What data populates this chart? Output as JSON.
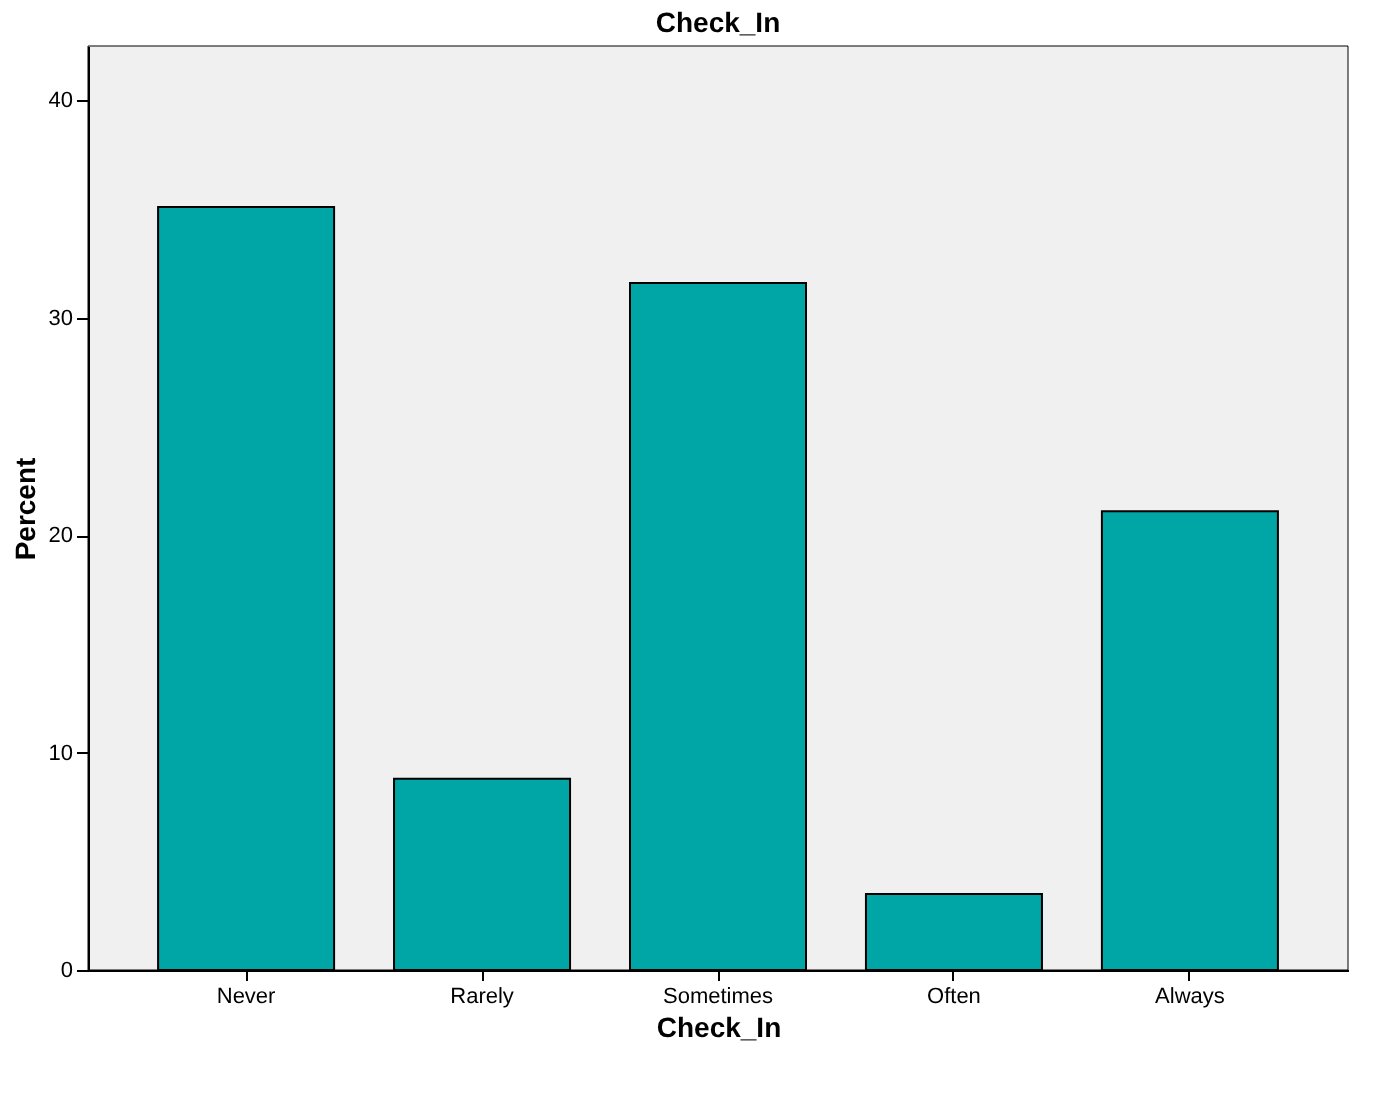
{
  "chart_data": {
    "type": "bar",
    "title": "Check_In",
    "xlabel": "Check_In",
    "ylabel": "Percent",
    "categories": [
      "Never",
      "Rarely",
      "Sometimes",
      "Often",
      "Always"
    ],
    "values": [
      35.1,
      8.8,
      31.6,
      3.5,
      21.1
    ],
    "color": "#00a5a5",
    "ylim": [
      0,
      42.5
    ],
    "yticks": [
      0,
      10,
      20,
      30,
      40
    ],
    "grid": false
  }
}
